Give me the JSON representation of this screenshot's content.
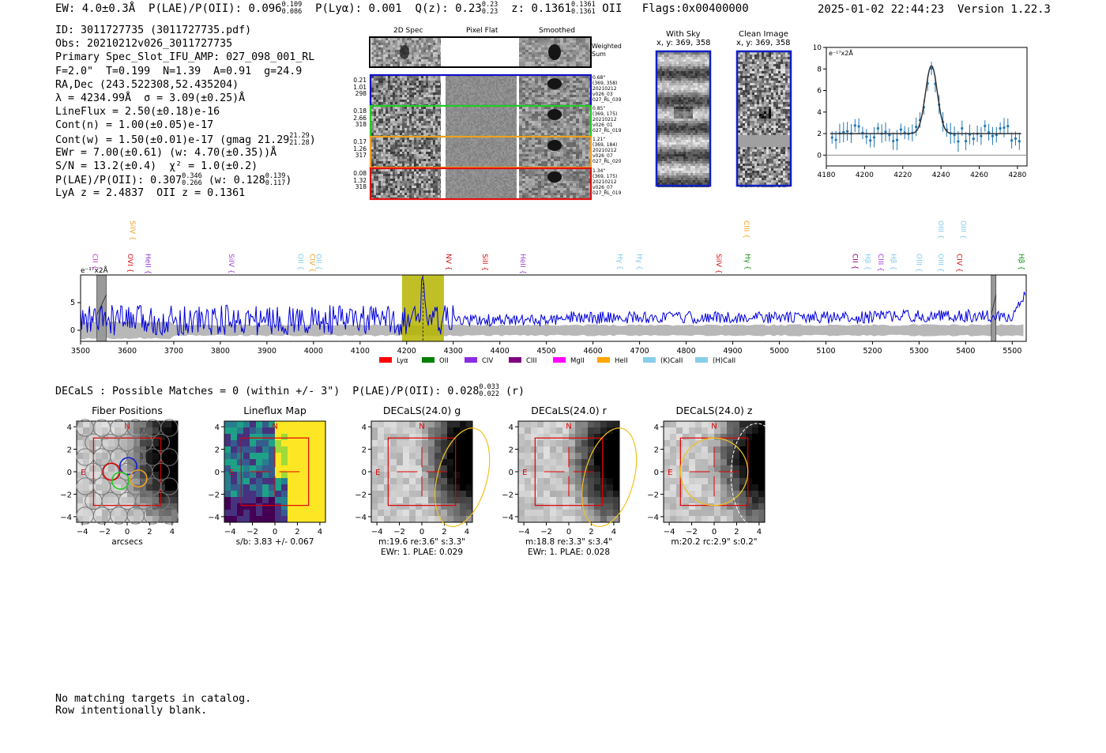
{
  "header": {
    "ew": "EW: 4.0±0.3Å",
    "plae_label": "P(LAE)/P(OII):",
    "plae_value": "0.096",
    "plae_hi": "0.109",
    "plae_lo": "0.086",
    "plya": "P(Lyα): 0.001",
    "qz_label": "Q(z):",
    "qz_value": "0.23",
    "qz_hi": "0.23",
    "qz_lo": "0.23",
    "z_label": "z:",
    "z_value": "0.1361",
    "z_hi": "0.1361",
    "z_lo": "0.1361",
    "z_line": "OII",
    "flags": "Flags:0x00400000",
    "datetime": "2025-01-02 22:44:23",
    "version": "Version 1.22.3"
  },
  "info": {
    "id": "ID: 3011727735 (3011727735.pdf)",
    "obs": "Obs: 20210212v026_3011727735",
    "primary": "Primary Spec_Slot_IFU_AMP: 027_098_001_RL",
    "fiber": "F=2.0\"  T=0.199  N=1.39  A=0.91  g=24.9",
    "radec": "RA,Dec (243.522308,52.435204)",
    "lambda": "λ = 4234.99Å  σ = 3.09(±0.25)Å",
    "lineflux": "LineFlux = 2.50(±0.18)e-16",
    "contn": "Cont(n) = 1.00(±0.05)e-17",
    "contw": "Cont(w) = 1.50(±0.01)e-17 (gmag 21.29",
    "contw_hi": "21.29",
    "contw_lo": "21.28",
    "contw_end": ")",
    "ewr": "EWr = 7.00(±0.61) (w: 4.70(±0.35))Å",
    "sn": "S/N = 13.2(±0.4)  χ² = 1.0(±0.2)",
    "plae": "P(LAE)/P(OII): 0.307",
    "plae_hi": "0.346",
    "plae_lo": "0.266",
    "plae_w": " (w: 0.128",
    "plae_w_hi": "0.139",
    "plae_w_lo": "0.117",
    "plae_w_end": ")",
    "lya": "LyA z = 2.4837  OII z = 0.1361"
  },
  "cutouts": {
    "col_2d": "2D Spec",
    "col_flat": "Pixel Flat",
    "col_smooth": "Smoothed",
    "weighted": "Weighted Sum",
    "rows": [
      {
        "n1": "0.21",
        "n2": "1.01",
        "n3": "298",
        "side": [
          "0.68\"",
          "(369, 358)",
          "20210212",
          "v026_03",
          "027_RL_039"
        ],
        "color": "#1010c8"
      },
      {
        "n1": "0.18",
        "n2": "2.66",
        "n3": "318",
        "side": [
          "0.85\"",
          "(369, 175)",
          "20210212",
          "v026_01",
          "027_RL_019"
        ],
        "color": "#22cc22"
      },
      {
        "n1": "0.17",
        "n2": "1.26",
        "n3": "317",
        "side": [
          "1.21\"",
          "(369, 184)",
          "20210212",
          "v026_07",
          "027_RL_020"
        ],
        "color": "#f0a020"
      },
      {
        "n1": "0.08",
        "n2": "1.32",
        "n3": "318",
        "side": [
          "1.34\"",
          "(369, 175)",
          "20210212",
          "v026_07",
          "027_RL_019"
        ],
        "color": "#e01010"
      }
    ],
    "with_sky_title": "With Sky",
    "with_sky_coords": "x, y: 369, 358",
    "clean_title": "Clean Image",
    "clean_coords": "x, y: 369, 358"
  },
  "zoom_chart": {
    "chart_data": {
      "type": "scatter",
      "unit_label": "e⁻¹⁷x2Å",
      "xlim": [
        4180,
        4285
      ],
      "ylim": [
        -1,
        10
      ],
      "xticks": [
        "4180",
        "4200",
        "4220",
        "4240",
        "4260",
        "4280"
      ],
      "yticks": [
        "0",
        "2",
        "4",
        "6",
        "8",
        "10"
      ],
      "fit": {
        "center": 4235.0,
        "sigma": 3.09,
        "amplitude": 6.3,
        "continuum": 2.0
      }
    }
  },
  "full_chart": {
    "chart_data": {
      "type": "line",
      "unit_label": "e⁻¹⁷x2Å",
      "xlim": [
        3500,
        5530
      ],
      "ylim": [
        -2,
        10
      ],
      "xticks": [
        "3500",
        "3600",
        "3700",
        "3800",
        "3900",
        "4000",
        "4100",
        "4200",
        "4300",
        "4400",
        "4500",
        "4600",
        "4700",
        "4800",
        "4900",
        "5000",
        "5100",
        "5200",
        "5300",
        "5400",
        "5500"
      ],
      "yticks": [
        "0",
        "5"
      ],
      "highlight_range": [
        4190,
        4280
      ],
      "line_center": 4235,
      "hatched_regions": [
        [
          3535,
          3555
        ],
        [
          5455,
          5465
        ]
      ],
      "line_marks": [
        {
          "label": "CII",
          "wave": 3531,
          "color": "#cc33cc",
          "row": "low"
        },
        {
          "label": "SiIV",
          "wave": 3612,
          "color": "#f0a020",
          "row": "high"
        },
        {
          "label": "OVI",
          "wave": 3607,
          "color": "#d01010",
          "row": "low"
        },
        {
          "label": "HeII",
          "wave": 3645,
          "color": "#8833cc",
          "row": "low"
        },
        {
          "label": "SiIV",
          "wave": 3824,
          "color": "#a040d0",
          "row": "low"
        },
        {
          "label": "OII",
          "wave": 3972,
          "color": "#80c8e8",
          "row": "low"
        },
        {
          "label": "CIV",
          "wave": 3998,
          "color": "#f0a020",
          "row": "low"
        },
        {
          "label": "OII",
          "wave": 4011,
          "color": "#80c8e8",
          "row": "low"
        },
        {
          "label": "NV",
          "wave": 4290,
          "color": "#d01010",
          "row": "low"
        },
        {
          "label": "SiII",
          "wave": 4368,
          "color": "#d01010",
          "row": "low"
        },
        {
          "label": "HeII",
          "wave": 4450,
          "color": "#a040d0",
          "row": "low"
        },
        {
          "label": "Hγ",
          "wave": 4658,
          "color": "#80c8e8",
          "row": "low"
        },
        {
          "label": "Hγ",
          "wave": 4700,
          "color": "#80c8e8",
          "row": "low"
        },
        {
          "label": "SiIV",
          "wave": 4870,
          "color": "#d01010",
          "row": "low"
        },
        {
          "label": "CIII",
          "wave": 4930,
          "color": "#f0a020",
          "row": "high"
        },
        {
          "label": "Hγ",
          "wave": 4932,
          "color": "#109010",
          "row": "low"
        },
        {
          "label": "CII",
          "wave": 5163,
          "color": "#800080",
          "row": "low"
        },
        {
          "label": "Hβ",
          "wave": 5190,
          "color": "#80c8e8",
          "row": "low"
        },
        {
          "label": "CIII",
          "wave": 5218,
          "color": "#a040d0",
          "row": "low"
        },
        {
          "label": "Hβ",
          "wave": 5245,
          "color": "#80c8e8",
          "row": "low"
        },
        {
          "label": "OIII",
          "wave": 5300,
          "color": "#80c8e8",
          "row": "low"
        },
        {
          "label": "OIII",
          "wave": 5347,
          "color": "#80c8e8",
          "row": "low"
        },
        {
          "label": "OIII",
          "wave": 5347,
          "color": "#80c8e8",
          "row": "high"
        },
        {
          "label": "OIII",
          "wave": 5395,
          "color": "#80c8e8",
          "row": "high"
        },
        {
          "label": "CIV",
          "wave": 5387,
          "color": "#d01010",
          "row": "low"
        },
        {
          "label": "Hβ",
          "wave": 5520,
          "color": "#109010",
          "row": "low"
        }
      ],
      "legend": [
        {
          "label": "Lyα",
          "color": "#ff0000"
        },
        {
          "label": "OII",
          "color": "#008000"
        },
        {
          "label": "CIV",
          "color": "#8a2be2"
        },
        {
          "label": "CIII",
          "color": "#800080"
        },
        {
          "label": "MgII",
          "color": "#ff00ff"
        },
        {
          "label": "HeII",
          "color": "#ffa500"
        },
        {
          "label": "(K)CaII",
          "color": "#87ceeb"
        },
        {
          "label": "(H)CaII",
          "color": "#87ceeb"
        }
      ]
    }
  },
  "decals": {
    "summary": "DECaLS : Possible Matches = 0 (within +/- 3\")  P(LAE)/P(OII): 0.028",
    "summary_hi": "0.033",
    "summary_lo": "0.022",
    "summary_end": " (r)",
    "panels": [
      {
        "title": "Fiber Positions",
        "cap1": "arcsecs",
        "cap2": ""
      },
      {
        "title": "Lineflux Map",
        "cap1": "s/b: 3.83 +/- 0.067",
        "cap2": ""
      },
      {
        "title": "DECaLS(24.0) g",
        "cap1": "m:19.6  re:3.6\"  s:3.3\"",
        "cap2": "EWr: 1. PLAE: 0.029"
      },
      {
        "title": "DECaLS(24.0) r",
        "cap1": "m:18.8  re:3.3\"  s:3.4\"",
        "cap2": "EWr: 1. PLAE: 0.028"
      },
      {
        "title": "DECaLS(24.0) z",
        "cap1": "m:20.2 rc:2.9\"  s:0.2\"",
        "cap2": ""
      }
    ],
    "axis_ticks": [
      "−4",
      "−2",
      "0",
      "2",
      "4"
    ],
    "north": "N",
    "east": "E"
  },
  "notes": {
    "line1": "No matching targets in catalog.",
    "line2": "Row intentionally blank."
  }
}
